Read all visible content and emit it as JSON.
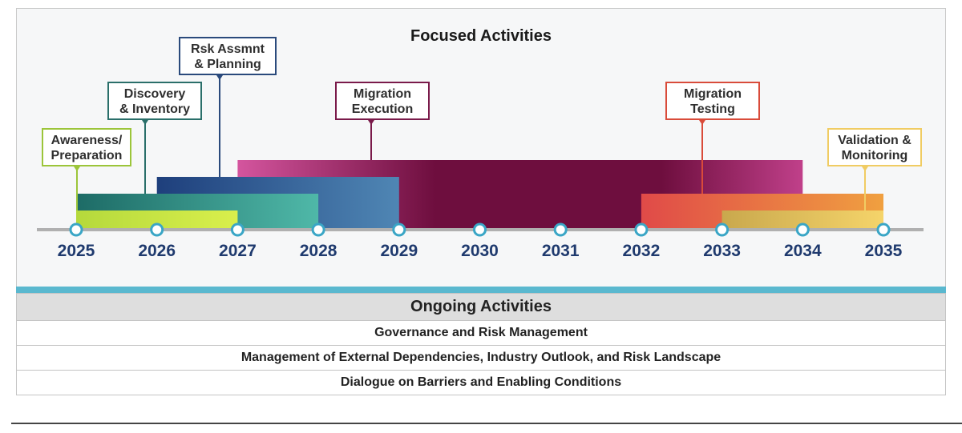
{
  "title": "Focused Activities",
  "phases": [
    {
      "label": "Awareness/\nPreparation",
      "start_year": 2025,
      "end_year": 2027,
      "color_start": "#b5d93c",
      "color_end": "#d9ef4c",
      "border": "#9cc53a"
    },
    {
      "label": "Discovery\n& Inventory",
      "start_year": 2025,
      "end_year": 2028,
      "color_start": "#1d6b66",
      "color_end": "#4fb8a8",
      "border": "#2a6f6a"
    },
    {
      "label": "Rsk Assmnt\n& Planning",
      "start_year": 2026,
      "end_year": 2029,
      "color_start": "#1e3f7c",
      "color_end": "#4f86b4",
      "border": "#2a4a7c"
    },
    {
      "label": "Migration\nExecution",
      "start_year": 2027,
      "end_year": 2034,
      "color_start": "#d4559e",
      "color_mid": "#6e0e3e",
      "color_end": "#c0408a",
      "border": "#7a1a4a"
    },
    {
      "label": "Migration\nTesting",
      "start_year": 2032,
      "end_year": 2035,
      "color_start": "#e04a48",
      "color_end": "#f0a040",
      "border": "#d94b3a"
    },
    {
      "label": "Validation &\nMonitoring",
      "start_year": 2033,
      "end_year": 2035,
      "color_start": "#c9a84d",
      "color_end": "#f5d46a",
      "border": "#f0cc63"
    }
  ],
  "years": [
    "2025",
    "2026",
    "2027",
    "2028",
    "2029",
    "2030",
    "2031",
    "2032",
    "2033",
    "2034",
    "2035"
  ],
  "ongoing": {
    "header": "Ongoing Activities",
    "rows": [
      "Governance and Risk Management",
      "Management of External Dependencies, Industry Outlook, and Risk Landscape",
      "Dialogue on Barriers and Enabling Conditions"
    ]
  },
  "colors": {
    "axis": "#b0b0b0",
    "marker": "#3aa6c6",
    "year_text": "#1f3a6e",
    "stripe": "#5ab8cf"
  }
}
